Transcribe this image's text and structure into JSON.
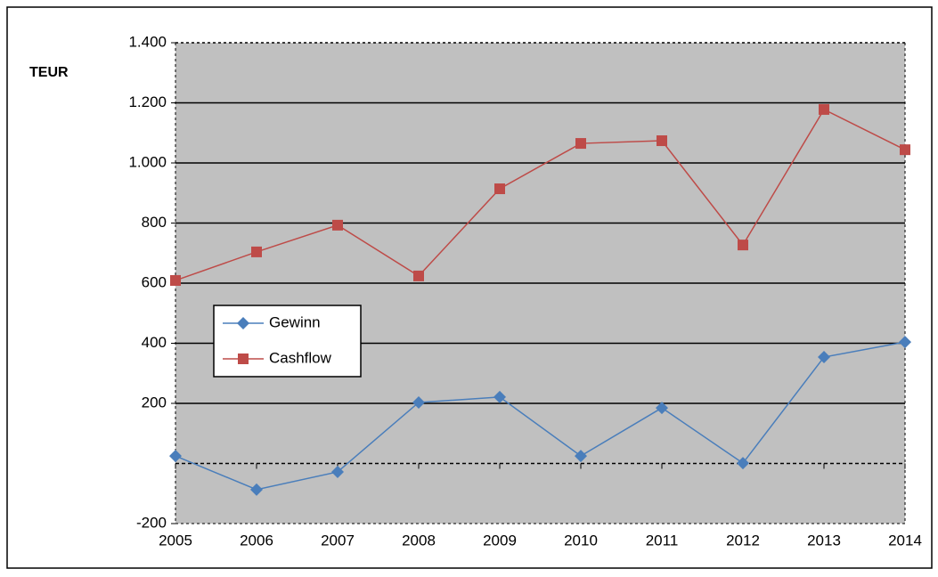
{
  "chart_data": {
    "type": "line",
    "ylabel": "TEUR",
    "x": [
      2005,
      2006,
      2007,
      2008,
      2009,
      2010,
      2011,
      2012,
      2013,
      2014
    ],
    "xlim": [
      2005,
      2014
    ],
    "xticks": [
      2005,
      2006,
      2007,
      2008,
      2009,
      2010,
      2011,
      2012,
      2013,
      2014
    ],
    "ylim": [
      -200,
      1400
    ],
    "yticks": [
      -200,
      200,
      400,
      600,
      800,
      {
        "value": 1000,
        "label": "1.000"
      },
      {
        "value": 1200,
        "label": "1.200"
      },
      {
        "value": 1400,
        "label": "1.400"
      }
    ],
    "grid": true,
    "series": [
      {
        "name": "Gewinn",
        "color": "#4a7ebb",
        "marker": "diamond",
        "values": [
          25,
          -87,
          -28,
          203,
          221,
          25,
          185,
          1,
          354,
          404
        ]
      },
      {
        "name": "Cashflow",
        "color": "#be4b48",
        "marker": "square",
        "values": [
          609,
          704,
          793,
          624,
          914,
          1065,
          1074,
          727,
          1178,
          1044
        ]
      }
    ]
  }
}
